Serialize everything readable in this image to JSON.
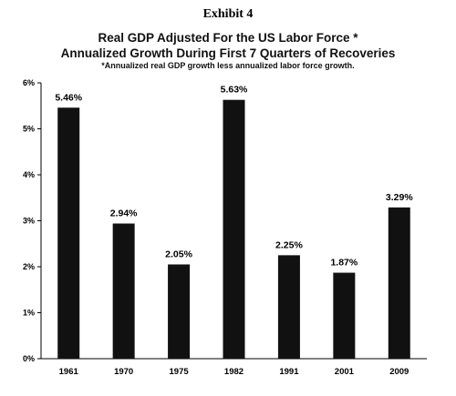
{
  "header": {
    "exhibit": "Exhibit 4"
  },
  "chart_data": {
    "type": "bar",
    "title": "Real GDP Adjusted For the US Labor Force *",
    "title_line2": "Annualized Growth During First 7 Quarters of Recoveries",
    "subtitle": "*Annualized real GDP growth less annualized labor force growth.",
    "xlabel": "",
    "ylabel": "",
    "categories": [
      "1961",
      "1970",
      "1975",
      "1982",
      "1991",
      "2001",
      "2009"
    ],
    "values": [
      5.46,
      2.94,
      2.05,
      5.63,
      2.25,
      1.87,
      3.29
    ],
    "data_labels": [
      "5.46%",
      "2.94%",
      "2.05%",
      "5.63%",
      "2.25%",
      "1.87%",
      "3.29%"
    ],
    "ylim": [
      0,
      6
    ],
    "yticks": [
      0,
      1,
      2,
      3,
      4,
      5,
      6
    ],
    "ytick_labels": [
      "0%",
      "1%",
      "2%",
      "3%",
      "4%",
      "5%",
      "6%"
    ],
    "grid": false,
    "legend": "none",
    "bar_color": "#111111"
  }
}
